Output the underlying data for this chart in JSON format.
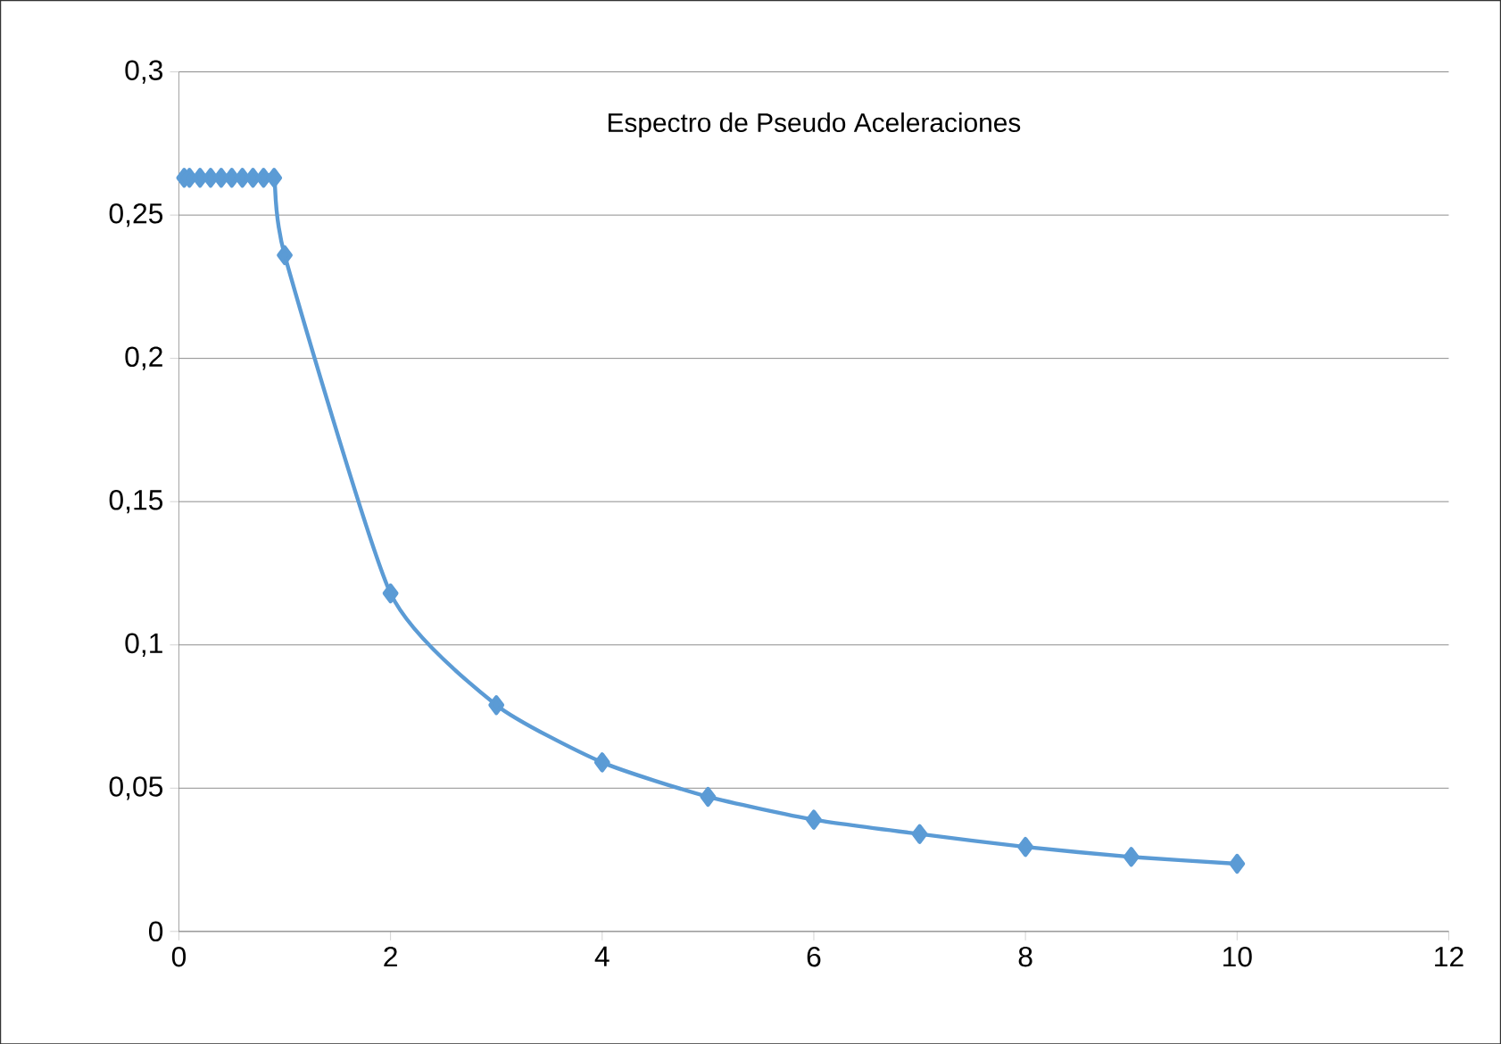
{
  "chart_data": {
    "type": "line",
    "title": "Espectro de Pseudo Aceleraciones",
    "x": [
      0.05,
      0.1,
      0.2,
      0.3,
      0.4,
      0.5,
      0.6,
      0.7,
      0.8,
      0.9,
      1,
      2,
      3,
      4,
      5,
      6,
      7,
      8,
      9,
      10
    ],
    "series": [
      {
        "color": "#5b9bd5",
        "values": [
          0.263,
          0.263,
          0.263,
          0.263,
          0.263,
          0.263,
          0.263,
          0.263,
          0.263,
          0.263,
          0.236,
          0.118,
          0.079,
          0.059,
          0.047,
          0.039,
          0.034,
          0.0295,
          0.026,
          0.0236
        ]
      }
    ],
    "marker": "diamond",
    "line_style": "solid",
    "grid": "y",
    "xlim": [
      0,
      12
    ],
    "xticks": [
      0,
      2,
      4,
      6,
      8,
      10,
      12
    ],
    "ylim": [
      0,
      0.3
    ],
    "yticks": [
      0,
      {
        "value": 0.05,
        "label": "0,05"
      },
      {
        "value": 0.1,
        "label": "0,1"
      },
      {
        "value": 0.15,
        "label": "0,15"
      },
      {
        "value": 0.2,
        "label": "0,2"
      },
      {
        "value": 0.25,
        "label": "0,25"
      },
      {
        "value": 0.3,
        "label": "0,3"
      }
    ]
  }
}
